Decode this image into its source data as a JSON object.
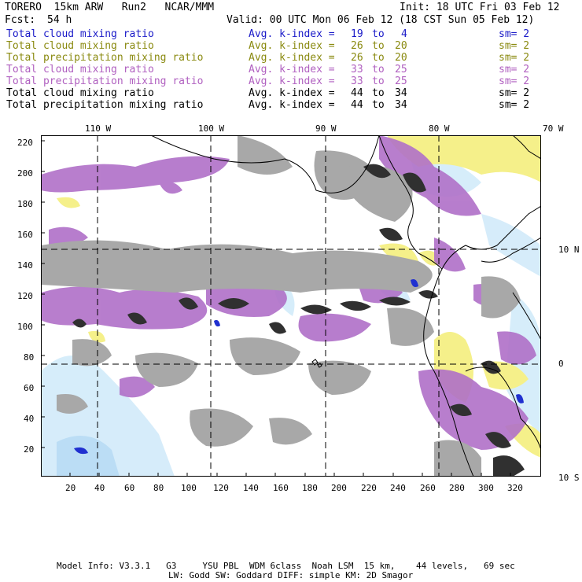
{
  "header": {
    "model": "TORERO  15km ARW   Run2   NCAR/MMM",
    "init": "Init: 18 UTC Fri 03 Feb 12",
    "fcst_label": "Fcst:",
    "fcst_value": "54 h",
    "valid": "Valid: 00 UTC Mon 06 Feb 12 (18 CST Sun 05 Feb 12)"
  },
  "legend": [
    {
      "name": "Total cloud mixing ratio",
      "index": "Avg. k-index =",
      "from": "19",
      "to_word": "to",
      "to": "4",
      "sm": "sm= 2",
      "color": "#1a1ac8"
    },
    {
      "name": "Total cloud mixing ratio",
      "index": "Avg. k-index =",
      "from": "26",
      "to_word": "to",
      "to": "20",
      "sm": "sm= 2",
      "color": "#8a8a10"
    },
    {
      "name": "Total precipitation mixing ratio",
      "index": "Avg. k-index =",
      "from": "26",
      "to_word": "to",
      "to": "20",
      "sm": "sm= 2",
      "color": "#8a8a10"
    },
    {
      "name": "Total cloud mixing ratio",
      "index": "Avg. k-index =",
      "from": "33",
      "to_word": "to",
      "to": "25",
      "sm": "sm= 2",
      "color": "#b060c0"
    },
    {
      "name": "Total precipitation mixing ratio",
      "index": "Avg. k-index =",
      "from": "33",
      "to_word": "to",
      "to": "25",
      "sm": "sm= 2",
      "color": "#b060c0"
    },
    {
      "name": "Total cloud mixing ratio",
      "index": "Avg. k-index =",
      "from": "44",
      "to_word": "to",
      "to": "34",
      "sm": "sm= 2",
      "color": "#000000"
    },
    {
      "name": "Total precipitation mixing ratio",
      "index": "Avg. k-index =",
      "from": "44",
      "to_word": "to",
      "to": "34",
      "sm": "sm= 2",
      "color": "#000000"
    }
  ],
  "lon_labels": [
    "110 W",
    "100 W",
    "90 W",
    "80 W",
    "70 W"
  ],
  "lat_labels": [
    "10 N",
    "0",
    "10 S"
  ],
  "y_ticks": [
    "220",
    "200",
    "180",
    "160",
    "140",
    "120",
    "100",
    "80",
    "60",
    "40",
    "20"
  ],
  "x_ticks": [
    "20",
    "40",
    "60",
    "80",
    "100",
    "120",
    "140",
    "160",
    "180",
    "200",
    "220",
    "240",
    "260",
    "280",
    "300",
    "320"
  ],
  "footer": {
    "line1": "Model Info: V3.3.1   G3     YSU PBL  WDM 6class  Noah LSM  15 km,    44 levels,   69 sec",
    "line2": "LW: Godd SW: Goddard DIFF: simple KM: 2D Smagor"
  },
  "colors": {
    "cloud_light": "#c8c8c8",
    "cloud_gray": "#a0a0a0",
    "cloud_dark": "#303030",
    "magenta": "#b070c8",
    "yellow": "#f5f08a",
    "cyan_light": "#d0ecfa",
    "blue": "#2030d0"
  }
}
